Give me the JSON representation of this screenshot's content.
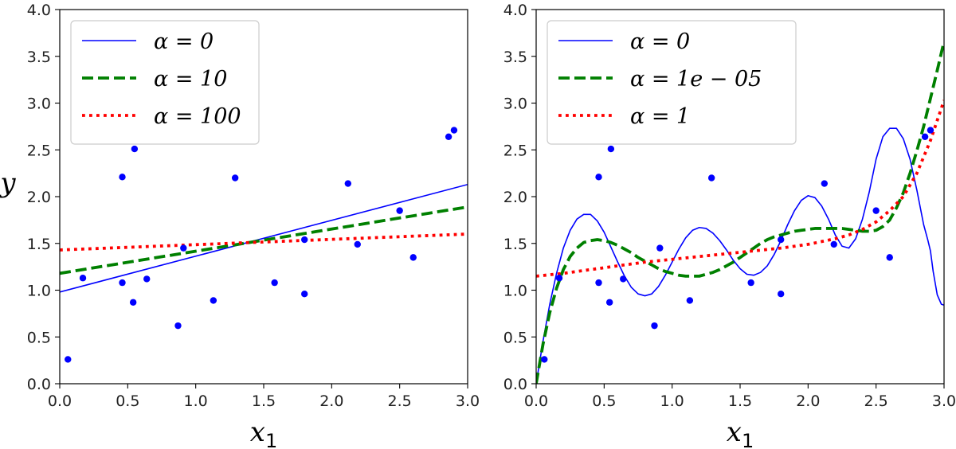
{
  "chart_data": [
    {
      "type": "scatter",
      "title": "",
      "xlabel": "x_1",
      "ylabel": "y",
      "xlim": [
        0.0,
        3.0
      ],
      "ylim": [
        0.0,
        4.0
      ],
      "xticks": [
        "0.0",
        "0.5",
        "1.0",
        "1.5",
        "2.0",
        "2.5",
        "3.0"
      ],
      "yticks": [
        "0.0",
        "0.5",
        "1.0",
        "1.5",
        "2.0",
        "2.5",
        "3.0",
        "3.5",
        "4.0"
      ],
      "grid": false,
      "legend_position": "top-left",
      "points": {
        "color": "#0000ff",
        "x": [
          0.06,
          0.17,
          0.46,
          0.46,
          0.54,
          0.55,
          0.64,
          0.87,
          0.91,
          1.13,
          1.29,
          1.58,
          1.8,
          1.8,
          2.12,
          2.19,
          2.5,
          2.6,
          2.86,
          2.9
        ],
        "y": [
          0.26,
          1.13,
          2.21,
          1.08,
          0.87,
          2.51,
          1.12,
          0.62,
          1.45,
          0.89,
          2.2,
          1.08,
          1.54,
          0.96,
          2.14,
          1.49,
          1.85,
          1.35,
          2.64,
          2.71
        ]
      },
      "series": [
        {
          "name": "α = 0",
          "style": "solid",
          "color": "#0000ff",
          "x": [
            0,
            3
          ],
          "y": [
            0.98,
            2.13
          ]
        },
        {
          "name": "α = 10",
          "style": "dashed",
          "color": "#008000",
          "x": [
            0,
            3
          ],
          "y": [
            1.18,
            1.89
          ]
        },
        {
          "name": "α = 100",
          "style": "dotted",
          "color": "#ff0000",
          "x": [
            0,
            3
          ],
          "y": [
            1.43,
            1.6
          ]
        }
      ]
    },
    {
      "type": "scatter",
      "title": "",
      "xlabel": "x_1",
      "ylabel": "",
      "xlim": [
        0.0,
        3.0
      ],
      "ylim": [
        0.0,
        4.0
      ],
      "xticks": [
        "0.0",
        "0.5",
        "1.0",
        "1.5",
        "2.0",
        "2.5",
        "3.0"
      ],
      "yticks": [
        "0.0",
        "0.5",
        "1.0",
        "1.5",
        "2.0",
        "2.5",
        "3.0",
        "3.5",
        "4.0"
      ],
      "grid": false,
      "legend_position": "top-left",
      "points": {
        "color": "#0000ff",
        "x": [
          0.06,
          0.17,
          0.46,
          0.46,
          0.54,
          0.55,
          0.64,
          0.87,
          0.91,
          1.13,
          1.29,
          1.58,
          1.8,
          1.8,
          2.12,
          2.19,
          2.5,
          2.6,
          2.86,
          2.9
        ],
        "y": [
          0.26,
          1.13,
          2.21,
          1.08,
          0.87,
          2.51,
          1.12,
          0.62,
          1.45,
          0.89,
          2.2,
          1.08,
          1.54,
          0.96,
          2.14,
          1.49,
          1.85,
          1.35,
          2.64,
          2.71
        ]
      },
      "series": [
        {
          "name": "α = 0",
          "style": "solid",
          "color": "#0000ff",
          "x": [
            0.0,
            0.05,
            0.1,
            0.15,
            0.2,
            0.25,
            0.3,
            0.35,
            0.4,
            0.45,
            0.5,
            0.55,
            0.6,
            0.65,
            0.7,
            0.75,
            0.8,
            0.85,
            0.9,
            0.95,
            1.0,
            1.05,
            1.1,
            1.15,
            1.2,
            1.25,
            1.3,
            1.35,
            1.4,
            1.45,
            1.5,
            1.55,
            1.6,
            1.65,
            1.7,
            1.75,
            1.8,
            1.85,
            1.9,
            1.95,
            2.0,
            2.05,
            2.1,
            2.15,
            2.2,
            2.25,
            2.3,
            2.35,
            2.4,
            2.45,
            2.5,
            2.55,
            2.6,
            2.65,
            2.7,
            2.75,
            2.8,
            2.85,
            2.88,
            2.9,
            2.92,
            2.95,
            2.98,
            3.0
          ],
          "y": [
            0.0,
            0.45,
            0.85,
            1.18,
            1.45,
            1.64,
            1.76,
            1.81,
            1.81,
            1.74,
            1.62,
            1.46,
            1.3,
            1.15,
            1.03,
            0.96,
            0.94,
            0.96,
            1.04,
            1.16,
            1.3,
            1.44,
            1.56,
            1.64,
            1.67,
            1.66,
            1.61,
            1.53,
            1.43,
            1.32,
            1.23,
            1.17,
            1.16,
            1.19,
            1.26,
            1.38,
            1.53,
            1.7,
            1.85,
            1.96,
            2.01,
            1.99,
            1.9,
            1.76,
            1.59,
            1.47,
            1.45,
            1.55,
            1.76,
            2.05,
            2.4,
            2.64,
            2.73,
            2.73,
            2.62,
            2.4,
            2.07,
            1.7,
            1.54,
            1.42,
            1.2,
            0.95,
            0.85,
            0.84
          ]
        },
        {
          "name": "α = 1e − 05",
          "style": "dashed",
          "color": "#008000",
          "x": [
            0.0,
            0.05,
            0.1,
            0.15,
            0.2,
            0.25,
            0.3,
            0.35,
            0.4,
            0.45,
            0.5,
            0.55,
            0.6,
            0.65,
            0.7,
            0.75,
            0.8,
            0.85,
            0.9,
            0.95,
            1.0,
            1.05,
            1.1,
            1.15,
            1.2,
            1.25,
            1.3,
            1.35,
            1.4,
            1.45,
            1.5,
            1.55,
            1.6,
            1.65,
            1.7,
            1.75,
            1.8,
            1.85,
            1.9,
            1.95,
            2.0,
            2.05,
            2.1,
            2.15,
            2.2,
            2.25,
            2.3,
            2.35,
            2.4,
            2.45,
            2.5,
            2.55,
            2.6,
            2.65,
            2.7,
            2.75,
            2.8,
            2.85,
            2.9,
            2.95,
            3.0
          ],
          "y": [
            0.0,
            0.42,
            0.76,
            1.02,
            1.22,
            1.36,
            1.45,
            1.51,
            1.53,
            1.54,
            1.53,
            1.51,
            1.48,
            1.44,
            1.4,
            1.35,
            1.31,
            1.27,
            1.23,
            1.2,
            1.18,
            1.16,
            1.15,
            1.15,
            1.15,
            1.17,
            1.19,
            1.22,
            1.26,
            1.3,
            1.35,
            1.4,
            1.45,
            1.5,
            1.54,
            1.57,
            1.59,
            1.61,
            1.63,
            1.64,
            1.65,
            1.66,
            1.66,
            1.66,
            1.66,
            1.66,
            1.65,
            1.64,
            1.63,
            1.63,
            1.64,
            1.68,
            1.75,
            1.88,
            2.04,
            2.25,
            2.49,
            2.75,
            3.05,
            3.35,
            3.66
          ]
        },
        {
          "name": "α = 1",
          "style": "dotted",
          "color": "#ff0000",
          "x": [
            0.0,
            0.2,
            0.4,
            0.6,
            0.8,
            1.0,
            1.2,
            1.4,
            1.6,
            1.8,
            2.0,
            2.1,
            2.2,
            2.3,
            2.4,
            2.5,
            2.6,
            2.7,
            2.8,
            2.9,
            3.0
          ],
          "y": [
            1.15,
            1.18,
            1.22,
            1.26,
            1.3,
            1.33,
            1.36,
            1.39,
            1.42,
            1.45,
            1.49,
            1.52,
            1.55,
            1.59,
            1.65,
            1.73,
            1.85,
            2.0,
            2.25,
            2.6,
            3.03
          ]
        }
      ]
    }
  ]
}
